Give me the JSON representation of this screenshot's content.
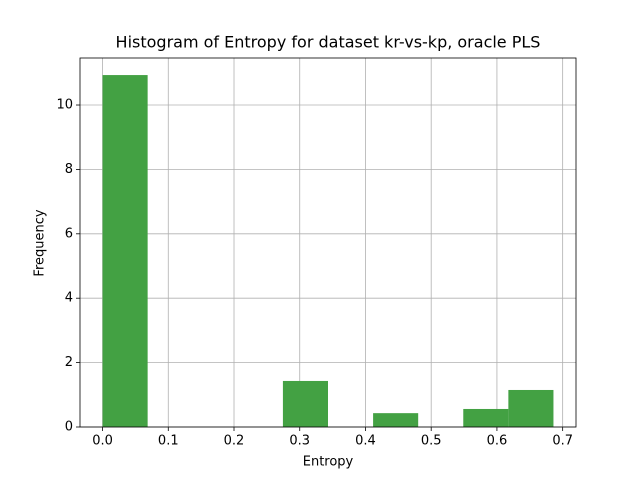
{
  "chart_data": {
    "type": "histogram",
    "title": "Histogram of Entropy for dataset kr-vs-kp, oracle PLS",
    "x_label": "Entropy",
    "y_label": "Frequency",
    "bins": [
      0,
      0.0686,
      0.1372,
      0.2058,
      0.2744,
      0.343,
      0.4116,
      0.4802,
      0.5488,
      0.6174,
      0.686
    ],
    "values": [
      10.93,
      0,
      0,
      0,
      1.43,
      0,
      0.43,
      0,
      0.56,
      1.15
    ],
    "color": "#43a143",
    "xlim": [
      -0.0343,
      0.7203
    ],
    "xticks": [
      {
        "value": 0,
        "label": "0.0"
      },
      0.1,
      0.2,
      0.3,
      0.4,
      0.5,
      0.6,
      0.7
    ],
    "ylim": [
      0,
      11.46
    ],
    "yticks": [
      0,
      2,
      4,
      6,
      8,
      10
    ],
    "grid": true
  }
}
